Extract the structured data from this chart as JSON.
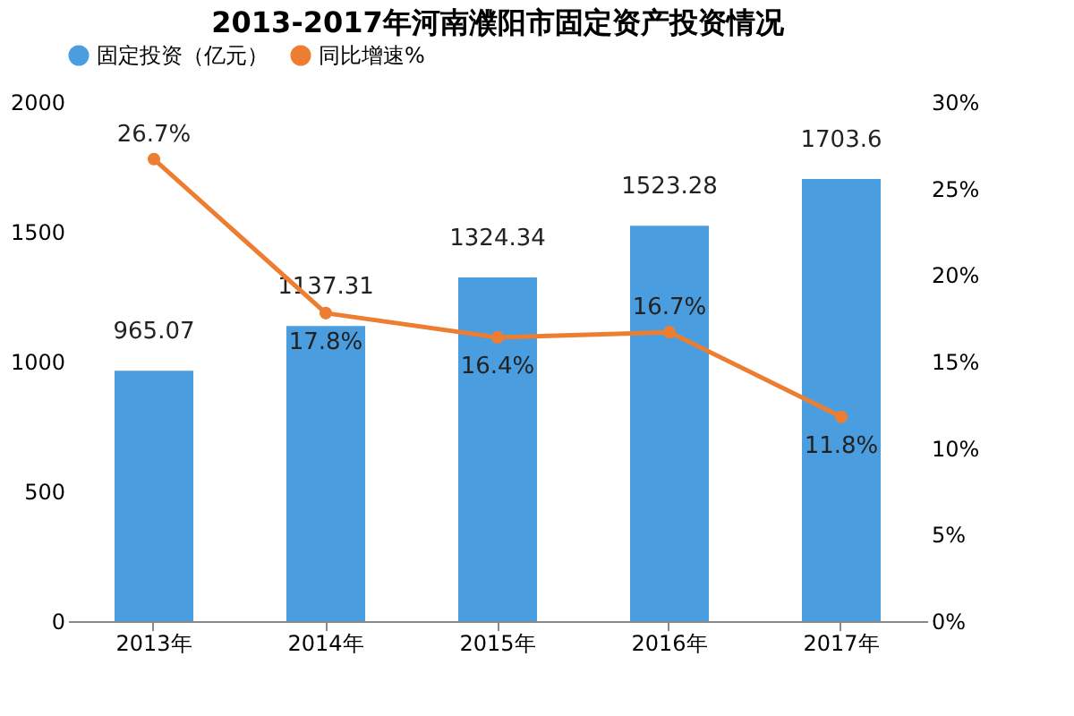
{
  "chart_data": {
    "type": "bar",
    "title": "2013-2017年河南濮阳市固定资产投资情况",
    "categories": [
      "2013年",
      "2014年",
      "2015年",
      "2016年",
      "2017年"
    ],
    "series": [
      {
        "name": "固定投资（亿元）",
        "color": "#4a9ee0",
        "values": [
          965.07,
          1137.31,
          1324.34,
          1523.28,
          1703.6
        ]
      },
      {
        "name": "同比增速%",
        "type": "line",
        "axis": "y2",
        "color": "#ed7d31",
        "values": [
          26.7,
          17.8,
          16.4,
          16.7,
          11.8
        ],
        "marker": "circle"
      }
    ],
    "ylim": [
      0,
      2000
    ],
    "yticks": [
      0,
      500,
      1000,
      1500,
      2000
    ],
    "y2lim": [
      0,
      30
    ],
    "y2ticks": [
      {
        "value": 0,
        "label": "0%"
      },
      {
        "value": 5,
        "label": "5%"
      },
      {
        "value": 10,
        "label": "10%"
      },
      {
        "value": 15,
        "label": "15%"
      },
      {
        "value": 20,
        "label": "20%"
      },
      {
        "value": 25,
        "label": "25%"
      },
      {
        "value": 30,
        "label": "30%"
      }
    ],
    "value_labels": [
      [
        "965.07",
        "1137.31",
        "1324.34",
        "1523.28",
        "1703.6"
      ],
      [
        "26.7%",
        "17.8%",
        "16.4%",
        "16.7%",
        "11.8%"
      ]
    ],
    "legend": "top",
    "grid": false
  }
}
